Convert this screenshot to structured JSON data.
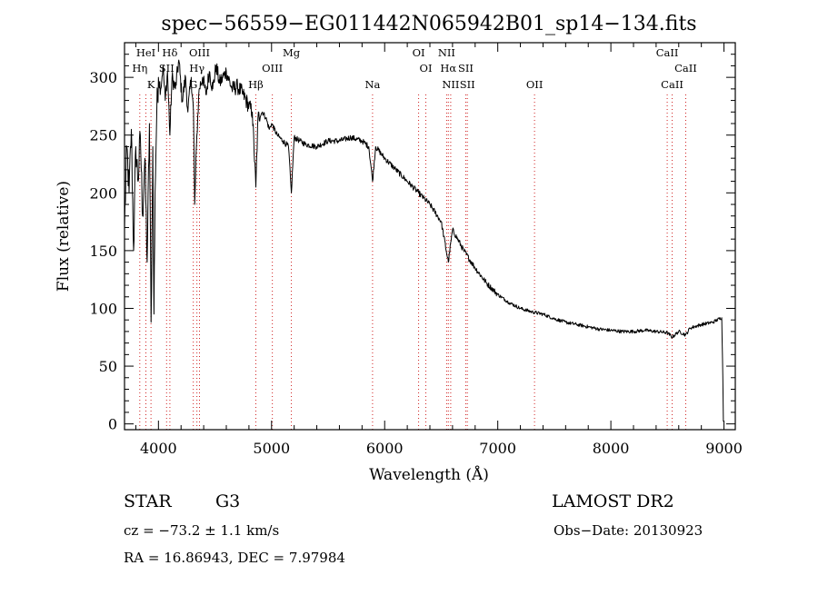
{
  "chart_data": {
    "type": "line",
    "title": "spec−56559−EG011442N065942B01_sp14−134.fits",
    "xlabel": "Wavelength (Å)",
    "ylabel": "Flux (relative)",
    "xlim": [
      3700,
      9100
    ],
    "ylim": [
      -5,
      330
    ],
    "xticks": [
      4000,
      5000,
      6000,
      7000,
      8000,
      9000
    ],
    "yticks": [
      0,
      50,
      100,
      150,
      200,
      250,
      300
    ],
    "series": [
      {
        "color": "#000000",
        "points": [
          [
            3700,
            170
          ],
          [
            3720,
            240
          ],
          [
            3740,
            200
          ],
          [
            3760,
            255
          ],
          [
            3780,
            150
          ],
          [
            3800,
            240
          ],
          [
            3820,
            210
          ],
          [
            3840,
            250
          ],
          [
            3860,
            180
          ],
          [
            3880,
            230
          ],
          [
            3900,
            140
          ],
          [
            3920,
            260
          ],
          [
            3935,
            88
          ],
          [
            3950,
            240
          ],
          [
            3960,
            95
          ],
          [
            3970,
            200
          ],
          [
            3985,
            270
          ],
          [
            4000,
            300
          ],
          [
            4020,
            290
          ],
          [
            4040,
            310
          ],
          [
            4060,
            280
          ],
          [
            4080,
            305
          ],
          [
            4101,
            250
          ],
          [
            4120,
            300
          ],
          [
            4150,
            290
          ],
          [
            4180,
            315
          ],
          [
            4210,
            280
          ],
          [
            4240,
            300
          ],
          [
            4260,
            270
          ],
          [
            4290,
            300
          ],
          [
            4310,
            270
          ],
          [
            4320,
            190
          ],
          [
            4340,
            250
          ],
          [
            4360,
            290
          ],
          [
            4390,
            300
          ],
          [
            4420,
            285
          ],
          [
            4450,
            305
          ],
          [
            4480,
            290
          ],
          [
            4510,
            310
          ],
          [
            4540,
            295
          ],
          [
            4570,
            300
          ],
          [
            4600,
            305
          ],
          [
            4650,
            290
          ],
          [
            4700,
            292
          ],
          [
            4750,
            285
          ],
          [
            4800,
            275
          ],
          [
            4830,
            270
          ],
          [
            4861,
            205
          ],
          [
            4880,
            265
          ],
          [
            4920,
            270
          ],
          [
            4950,
            265
          ],
          [
            4980,
            255
          ],
          [
            5000,
            260
          ],
          [
            5050,
            250
          ],
          [
            5100,
            245
          ],
          [
            5150,
            240
          ],
          [
            5175,
            200
          ],
          [
            5200,
            248
          ],
          [
            5250,
            245
          ],
          [
            5300,
            242
          ],
          [
            5400,
            240
          ],
          [
            5500,
            245
          ],
          [
            5600,
            245
          ],
          [
            5700,
            248
          ],
          [
            5800,
            245
          ],
          [
            5860,
            240
          ],
          [
            5893,
            210
          ],
          [
            5920,
            240
          ],
          [
            6000,
            230
          ],
          [
            6100,
            220
          ],
          [
            6200,
            210
          ],
          [
            6300,
            200
          ],
          [
            6400,
            190
          ],
          [
            6500,
            175
          ],
          [
            6563,
            140
          ],
          [
            6600,
            168
          ],
          [
            6700,
            150
          ],
          [
            6800,
            135
          ],
          [
            6900,
            122
          ],
          [
            7000,
            112
          ],
          [
            7100,
            105
          ],
          [
            7200,
            100
          ],
          [
            7300,
            97
          ],
          [
            7400,
            95
          ],
          [
            7500,
            91
          ],
          [
            7600,
            88
          ],
          [
            7700,
            86
          ],
          [
            7800,
            84
          ],
          [
            7900,
            82
          ],
          [
            8000,
            81
          ],
          [
            8100,
            80
          ],
          [
            8200,
            80
          ],
          [
            8300,
            81
          ],
          [
            8400,
            80
          ],
          [
            8500,
            79
          ],
          [
            8542,
            75
          ],
          [
            8600,
            80
          ],
          [
            8662,
            77
          ],
          [
            8700,
            83
          ],
          [
            8800,
            86
          ],
          [
            8900,
            88
          ],
          [
            8980,
            92
          ],
          [
            8990,
            40
          ],
          [
            8995,
            2
          ]
        ]
      }
    ],
    "line_markers": [
      {
        "wl": 3889,
        "label": "HeI",
        "row": 0
      },
      {
        "wl": 3835,
        "label": "Hη",
        "row": 1
      },
      {
        "wl": 3934,
        "label": "K",
        "row": 2
      },
      {
        "wl": 4101,
        "label": "Hδ",
        "row": 0
      },
      {
        "wl": 4072,
        "label": "SII",
        "row": 1
      },
      {
        "wl": 4308,
        "label": "G",
        "row": 2
      },
      {
        "wl": 4363,
        "label": "OIII",
        "row": 0
      },
      {
        "wl": 4340,
        "label": "Hγ",
        "row": 1
      },
      {
        "wl": 4861,
        "label": "Hβ",
        "row": 2
      },
      {
        "wl": 5007,
        "label": "OIII",
        "row": 1
      },
      {
        "wl": 5175,
        "label": "Mg",
        "row": 0
      },
      {
        "wl": 5893,
        "label": "Na",
        "row": 2
      },
      {
        "wl": 6300,
        "label": "OI",
        "row": 0
      },
      {
        "wl": 6364,
        "label": "OI",
        "row": 1
      },
      {
        "wl": 6548,
        "label": "NII",
        "row": 0
      },
      {
        "wl": 6563,
        "label": "Hα",
        "row": 1
      },
      {
        "wl": 6584,
        "label": "NII",
        "row": 2
      },
      {
        "wl": 6717,
        "label": "SII",
        "row": 1
      },
      {
        "wl": 6731,
        "label": "SII",
        "row": 2
      },
      {
        "wl": 7325,
        "label": "OII",
        "row": 2
      },
      {
        "wl": 8498,
        "label": "CaII",
        "row": 0
      },
      {
        "wl": 8542,
        "label": "CaII",
        "row": 2
      },
      {
        "wl": 8662,
        "label": "CaII",
        "row": 1
      }
    ],
    "grid": false,
    "legend": "none"
  },
  "info": {
    "object_class": "STAR",
    "subclass": "G3",
    "survey": "LAMOST DR2",
    "cz_line": "cz = −73.2 ± 1.1 km/s",
    "obs_date_line": "Obs−Date: 20130923",
    "radec_line": "RA =  16.86943, DEC =   7.97984"
  },
  "colors": {
    "spectrum": "#000000",
    "marker_lines": "#d02020",
    "axis": "#000000"
  }
}
